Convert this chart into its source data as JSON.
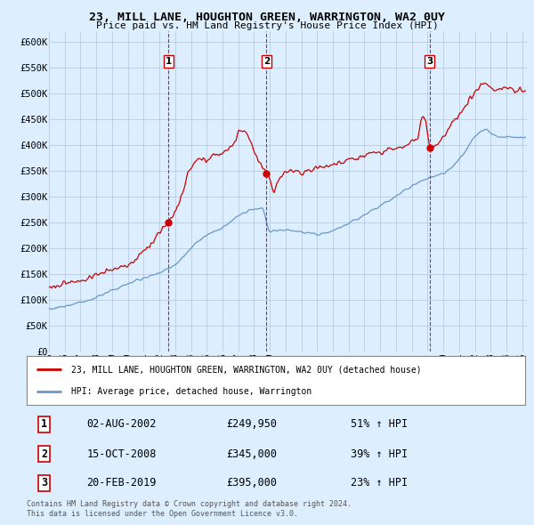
{
  "title": "23, MILL LANE, HOUGHTON GREEN, WARRINGTON, WA2 0UY",
  "subtitle": "Price paid vs. HM Land Registry's House Price Index (HPI)",
  "ylim": [
    0,
    620000
  ],
  "yticks": [
    0,
    50000,
    100000,
    150000,
    200000,
    250000,
    300000,
    350000,
    400000,
    450000,
    500000,
    550000,
    600000
  ],
  "ytick_labels": [
    "£0",
    "£50K",
    "£100K",
    "£150K",
    "£200K",
    "£250K",
    "£300K",
    "£350K",
    "£400K",
    "£450K",
    "£500K",
    "£550K",
    "£600K"
  ],
  "xlim_start": 1995.0,
  "xlim_end": 2025.3,
  "transactions": [
    {
      "num": 1,
      "date": "02-AUG-2002",
      "price": 249950,
      "pct": "51%",
      "x": 2002.58
    },
    {
      "num": 2,
      "date": "15-OCT-2008",
      "price": 345000,
      "pct": "39%",
      "x": 2008.79
    },
    {
      "num": 3,
      "date": "20-FEB-2019",
      "price": 395000,
      "pct": "23%",
      "x": 2019.13
    }
  ],
  "legend_property": "23, MILL LANE, HOUGHTON GREEN, WARRINGTON, WA2 0UY (detached house)",
  "legend_hpi": "HPI: Average price, detached house, Warrington",
  "footnote1": "Contains HM Land Registry data © Crown copyright and database right 2024.",
  "footnote2": "This data is licensed under the Open Government Licence v3.0.",
  "line_color_property": "#cc0000",
  "line_color_hpi": "#6699cc",
  "background_color": "#ddeeff",
  "plot_bg": "#ddeeff",
  "grid_color": "#b0c4de"
}
